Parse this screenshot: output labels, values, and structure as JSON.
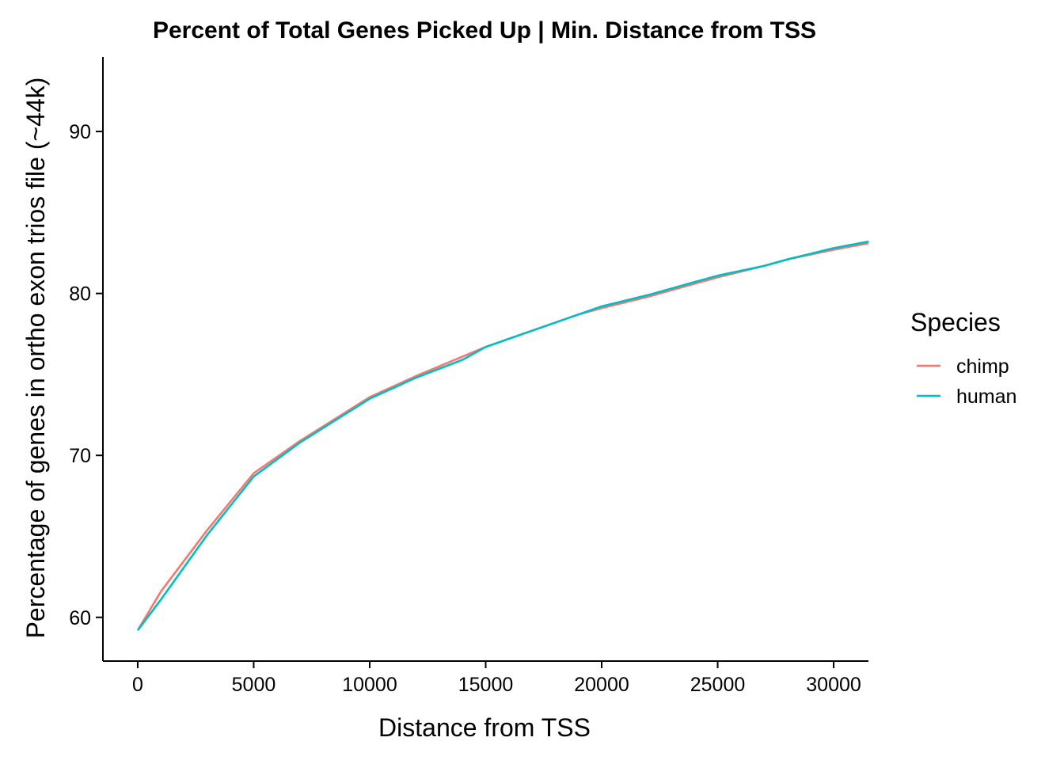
{
  "chart_data": {
    "type": "line",
    "title": "Percent of Total Genes Picked Up | Min. Distance from TSS",
    "xlabel": "Distance from TSS",
    "ylabel": "Percentage of genes in ortho exon trios file (~44k)",
    "xlim": [
      -1500,
      31500
    ],
    "ylim": [
      57.3,
      94.6
    ],
    "xticks": [
      0,
      5000,
      10000,
      15000,
      20000,
      25000,
      30000
    ],
    "yticks": [
      60,
      70,
      80,
      90
    ],
    "grid": false,
    "legend": {
      "title": "Species",
      "position": "right"
    },
    "series": [
      {
        "name": "chimp",
        "color": "#F8766D",
        "x": [
          0,
          1000,
          3000,
          5000,
          7000,
          10000,
          12000,
          14000,
          15000,
          17000,
          19000,
          20000,
          22000,
          24000,
          25000,
          27000,
          28000,
          30000,
          31500
        ],
        "y": [
          59.2,
          61.6,
          65.4,
          68.9,
          70.9,
          73.6,
          74.9,
          76.1,
          76.7,
          77.7,
          78.7,
          79.1,
          79.8,
          80.6,
          81.0,
          81.7,
          82.1,
          82.7,
          83.1
        ]
      },
      {
        "name": "human",
        "color": "#00BFC4",
        "x": [
          0,
          1000,
          3000,
          5000,
          7000,
          10000,
          12000,
          14000,
          15000,
          17000,
          19000,
          20000,
          22000,
          24000,
          25000,
          27000,
          28000,
          30000,
          31500
        ],
        "y": [
          59.2,
          61.1,
          65.1,
          68.7,
          70.8,
          73.5,
          74.8,
          75.9,
          76.7,
          77.7,
          78.7,
          79.2,
          79.9,
          80.7,
          81.1,
          81.7,
          82.1,
          82.8,
          83.2
        ]
      }
    ]
  }
}
